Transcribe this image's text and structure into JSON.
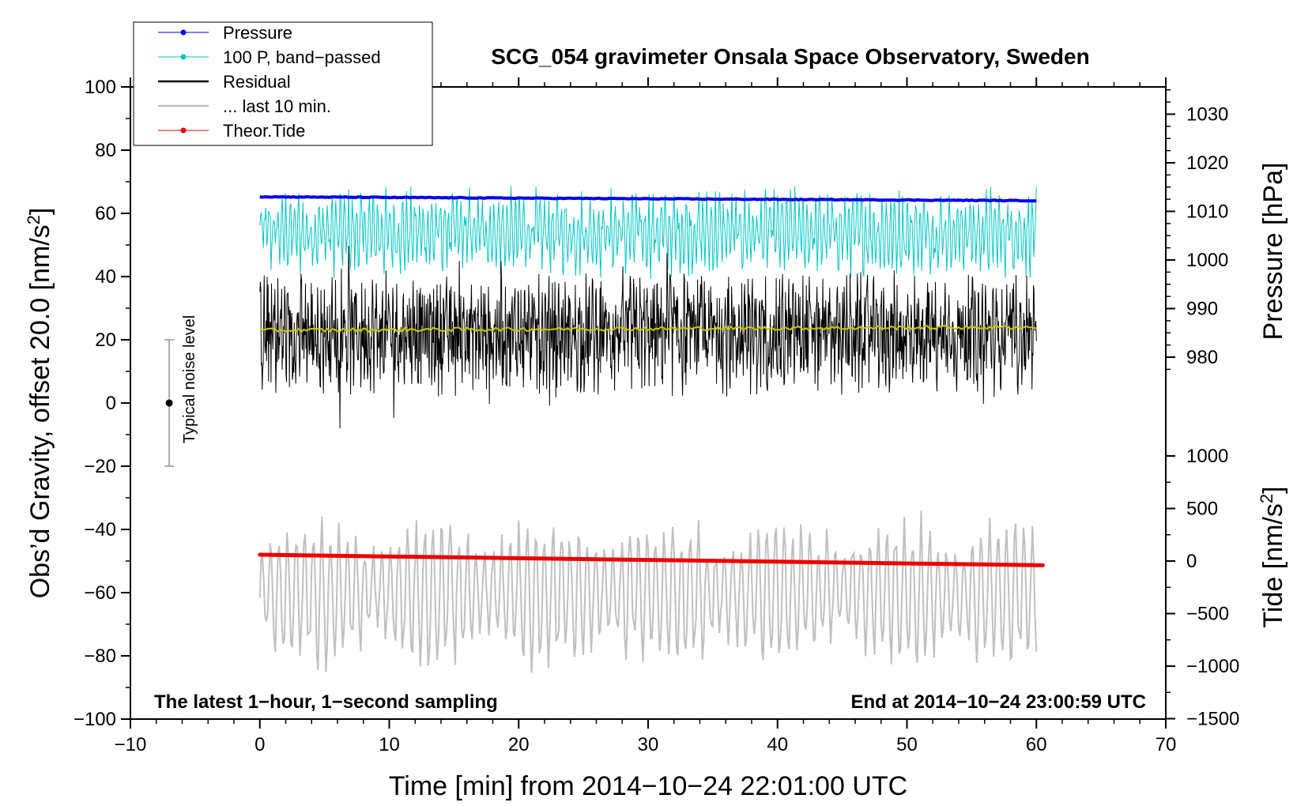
{
  "chart_data": {
    "type": "line",
    "title": "SCG_054 gravimeter Onsala Space Observatory, Sweden",
    "xlabel": "Time [min] from 2014−10−24 22:01:00 UTC",
    "ylabel_left": "Obs’d Gravity, offset 20.0 [nm/s²]",
    "ylabel_left_base": "Obs’d Gravity, offset 20.0 [nm/s",
    "ylabel_left_sup": "2",
    "ylabel_left_end": "]",
    "ylabel_right_top": "Pressure [hPa]",
    "ylabel_right_bottom_base": "Tide [nm/s",
    "ylabel_right_bottom_sup": "2",
    "ylabel_right_bottom_end": "]",
    "xlim": [
      -10,
      70
    ],
    "ylim": [
      -100,
      100
    ],
    "pressure_axis_ticks": [
      980,
      990,
      1000,
      1010,
      1020,
      1030
    ],
    "tide_axis_ticks": [
      -1500,
      -1000,
      -500,
      0,
      500,
      1000
    ],
    "x_ticks": [
      -10,
      0,
      10,
      20,
      30,
      40,
      50,
      60,
      70
    ],
    "y_ticks": [
      -100,
      -80,
      -60,
      -40,
      -20,
      0,
      20,
      40,
      60,
      80,
      100
    ],
    "x_tick_labels": [
      "−10",
      "0",
      "10",
      "20",
      "30",
      "40",
      "50",
      "60",
      "70"
    ],
    "y_tick_labels": [
      "−100",
      "−80",
      "−60",
      "−40",
      "−20",
      "0",
      "20",
      "40",
      "60",
      "80",
      "100"
    ],
    "pressure_tick_labels": [
      "980",
      "990",
      "1000",
      "1010",
      "1020",
      "1030"
    ],
    "tide_tick_labels": [
      "−1500",
      "−1000",
      "−500",
      "0",
      "500",
      "1000"
    ],
    "series": [
      {
        "name": "Pressure",
        "color": "#0000ee",
        "axis": "pressure",
        "x_range": [
          0,
          60
        ],
        "start": 1013.0,
        "end": 1012.2,
        "note": "nearly flat"
      },
      {
        "name": "100 P, band−passed",
        "color": "#00c8c8",
        "axis": "left",
        "x_range": [
          0,
          60
        ],
        "center": 54,
        "amplitude": 12
      },
      {
        "name": "Residual",
        "color": "#000000",
        "axis": "left",
        "x_range": [
          0,
          60
        ],
        "center": 22,
        "amplitude": 22
      },
      {
        "name": "... last 10 min.",
        "color": "#c0c0c0",
        "axis": "left",
        "x_range": [
          0,
          60
        ],
        "center": -60,
        "amplitude": 20
      },
      {
        "name": "Theor.Tide",
        "color": "#ee0000",
        "axis": "tide",
        "x_range": [
          0,
          60.5
        ],
        "start": 60,
        "end": -40
      }
    ],
    "smoothed_residual": {
      "color": "#c8c800",
      "start": 23,
      "end": 24
    },
    "noise_indicator": {
      "label": "Typical noise level",
      "x": -7,
      "center": 0,
      "half_range": 20
    },
    "annotations": {
      "bottom_left": "The latest 1−hour, 1−second sampling",
      "bottom_right": "End at 2014−10−24 23:00:59 UTC"
    },
    "legend": {
      "position": "top-left",
      "entries": [
        {
          "label": "Pressure",
          "color": "#0000ee",
          "marker": true,
          "width": 1
        },
        {
          "label": "100 P, band−passed",
          "color": "#00c8c8",
          "marker": true,
          "width": 1
        },
        {
          "label": "Residual",
          "color": "#000000",
          "marker": false,
          "width": 2.5
        },
        {
          "label": "... last 10 min.",
          "color": "#c0c0c0",
          "marker": false,
          "width": 2.5
        },
        {
          "label": "Theor.Tide",
          "color": "#ee0000",
          "marker": true,
          "width": 1
        }
      ]
    }
  }
}
